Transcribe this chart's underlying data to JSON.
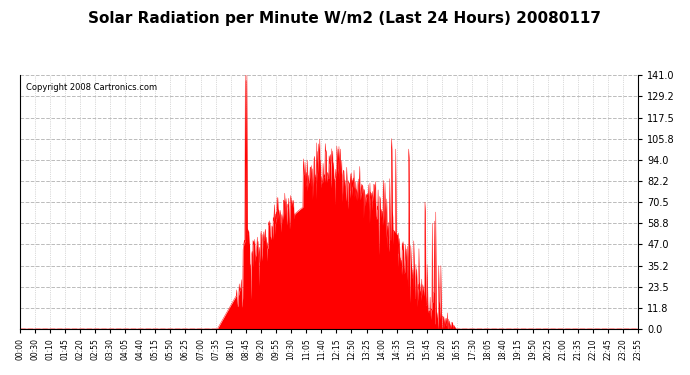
{
  "title": "Solar Radiation per Minute W/m2 (Last 24 Hours) 20080117",
  "copyright": "Copyright 2008 Cartronics.com",
  "bg_color": "#ffffff",
  "fill_color": "#ff0000",
  "line_color": "#ff0000",
  "dashed_line_color": "#ff0000",
  "grid_color": "#aaaaaa",
  "ylim": [
    0.0,
    141.0
  ],
  "yticks": [
    0.0,
    11.8,
    23.5,
    35.2,
    47.0,
    58.8,
    70.5,
    82.2,
    94.0,
    105.8,
    117.5,
    129.2,
    141.0
  ],
  "x_tick_labels": [
    "00:00",
    "00:30",
    "01:10",
    "01:45",
    "02:20",
    "02:55",
    "03:30",
    "04:05",
    "04:40",
    "05:15",
    "05:50",
    "06:25",
    "07:00",
    "07:35",
    "08:10",
    "08:45",
    "09:20",
    "09:55",
    "10:30",
    "11:05",
    "11:40",
    "12:15",
    "12:50",
    "13:25",
    "14:00",
    "14:35",
    "15:10",
    "15:45",
    "16:20",
    "16:55",
    "17:30",
    "18:05",
    "18:40",
    "19:15",
    "19:50",
    "20:25",
    "21:00",
    "21:35",
    "22:10",
    "22:45",
    "23:20",
    "23:55"
  ],
  "num_points": 1440,
  "sunrise_minute": 455,
  "sunset_minute": 990,
  "peak1_minute": 510,
  "peak1_value": 141.0,
  "peak2_minute": 545,
  "peak2_value": 141.0
}
